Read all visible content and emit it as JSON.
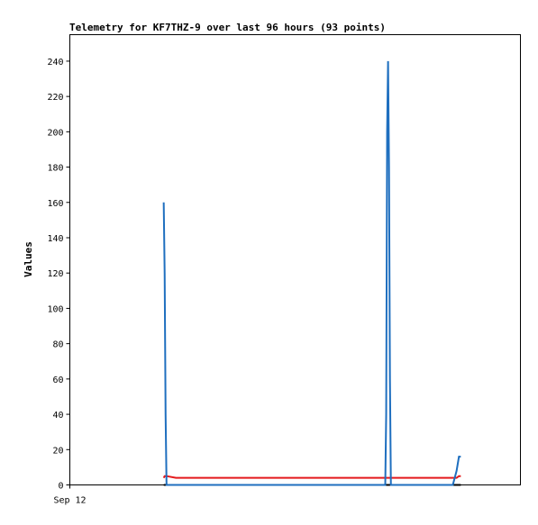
{
  "chart_data": {
    "type": "line",
    "title": "Telemetry for KF7THZ-9 over last 96 hours (93 points)",
    "ylabel": "Values",
    "x": [
      20,
      20.2,
      20.4,
      20.6,
      22.6,
      67.2,
      67.4,
      67.6,
      67.8,
      68.0,
      68.2,
      68.4,
      81.6,
      82.4,
      82.9,
      83.3
    ],
    "series": [
      {
        "color": "#000000",
        "values": [
          0,
          0,
          0,
          0,
          0,
          0,
          0,
          0,
          0,
          0,
          0,
          0,
          0,
          0,
          0,
          0
        ]
      },
      {
        "color": "#e41a1c",
        "values": [
          4,
          5,
          5,
          5,
          4,
          4,
          4,
          4,
          4,
          4,
          4,
          4,
          4,
          4,
          5,
          5
        ]
      },
      {
        "color": "#1f6fbf",
        "values": [
          160,
          120,
          40,
          0,
          0,
          0,
          40,
          200,
          240,
          180,
          60,
          0,
          0,
          8,
          16,
          16
        ]
      }
    ],
    "xlim": [
      0,
      96
    ],
    "xticks": [
      {
        "value": 0,
        "label": "Sep 12"
      }
    ],
    "ylim": [
      0,
      255
    ],
    "yticks": [
      0,
      20,
      40,
      60,
      80,
      100,
      120,
      140,
      160,
      180,
      200,
      220,
      240
    ],
    "grid": false
  }
}
